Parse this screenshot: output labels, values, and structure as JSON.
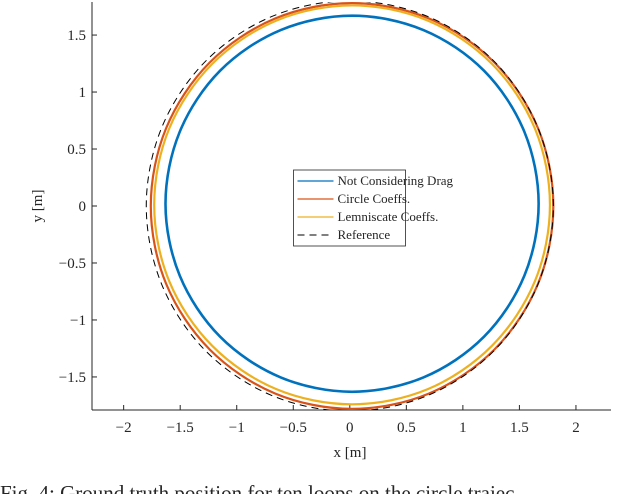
{
  "chart_data": {
    "type": "line",
    "x_label": "x [m]",
    "y_label": "y [m]",
    "caption": "Fig. 4: Ground truth position for ten loops on the circle trajec",
    "xlim": [
      -2.28,
      2.31
    ],
    "ylim": [
      -1.79,
      1.79
    ],
    "xticks": [
      {
        "value": -2,
        "label": "−2"
      },
      {
        "value": -1.5,
        "label": "−1.5"
      },
      {
        "value": -1,
        "label": "−1"
      },
      {
        "value": -0.5,
        "label": "−0.5"
      },
      0,
      0.5,
      1,
      1.5,
      2
    ],
    "yticks": [
      {
        "value": -1.5,
        "label": "−1.5"
      },
      {
        "value": -1,
        "label": "−1"
      },
      {
        "value": -0.5,
        "label": "−0.5"
      },
      0,
      0.5,
      1,
      1.5
    ],
    "legend": "center",
    "series": [
      {
        "name": "Not Considering Drag",
        "color": "#0072BD",
        "width": 2.6,
        "dashed": false,
        "x": [
          1.67,
          1.544,
          1.187,
          0.651,
          0.02,
          -0.611,
          -1.147,
          -1.504,
          -1.63,
          -1.504,
          -1.147,
          -0.611,
          0.02,
          0.651,
          1.187,
          1.544,
          1.67
        ],
        "y": [
          0.02,
          0.651,
          1.187,
          1.544,
          1.67,
          1.544,
          1.187,
          0.651,
          0.02,
          -0.611,
          -1.147,
          -1.504,
          -1.63,
          -1.504,
          -1.147,
          -0.611,
          0.02
        ]
      },
      {
        "name": "Circle Coeffs.",
        "color": "#D95319",
        "width": 2.2,
        "dashed": false,
        "x": [
          1.8,
          1.665,
          1.279,
          0.701,
          0.02,
          -0.661,
          -1.239,
          -1.625,
          -1.76,
          -1.625,
          -1.239,
          -0.661,
          0.02,
          0.701,
          1.279,
          1.665,
          1.8
        ],
        "y": [
          0,
          0.681,
          1.259,
          1.645,
          1.78,
          1.645,
          1.259,
          0.681,
          0,
          -0.681,
          -1.259,
          -1.645,
          -1.78,
          -1.645,
          -1.259,
          -0.681,
          0
        ]
      },
      {
        "name": "Lemniscate Coeffs.",
        "color": "#EDB120",
        "width": 2.2,
        "dashed": false,
        "x": [
          1.77,
          1.637,
          1.257,
          0.69,
          0.02,
          -0.65,
          -1.217,
          -1.597,
          -1.73,
          -1.597,
          -1.217,
          -0.65,
          0.02,
          0.69,
          1.257,
          1.637,
          1.77
        ],
        "y": [
          0.01,
          0.68,
          1.247,
          1.627,
          1.76,
          1.627,
          1.247,
          0.68,
          0.01,
          -0.66,
          -1.227,
          -1.607,
          -1.74,
          -1.607,
          -1.227,
          -0.66,
          0.01
        ]
      },
      {
        "name": "Reference",
        "color": "#000000",
        "width": 1,
        "dashed": true,
        "x": [
          1.8,
          1.663,
          1.273,
          0.689,
          0,
          -0.689,
          -1.273,
          -1.663,
          -1.8,
          -1.663,
          -1.273,
          -0.689,
          0,
          0.689,
          1.273,
          1.663,
          1.8
        ],
        "y": [
          0,
          0.689,
          1.273,
          1.663,
          1.8,
          1.663,
          1.273,
          0.689,
          0,
          -0.689,
          -1.273,
          -1.663,
          -1.8,
          -1.663,
          -1.273,
          -0.689,
          0
        ]
      }
    ]
  }
}
